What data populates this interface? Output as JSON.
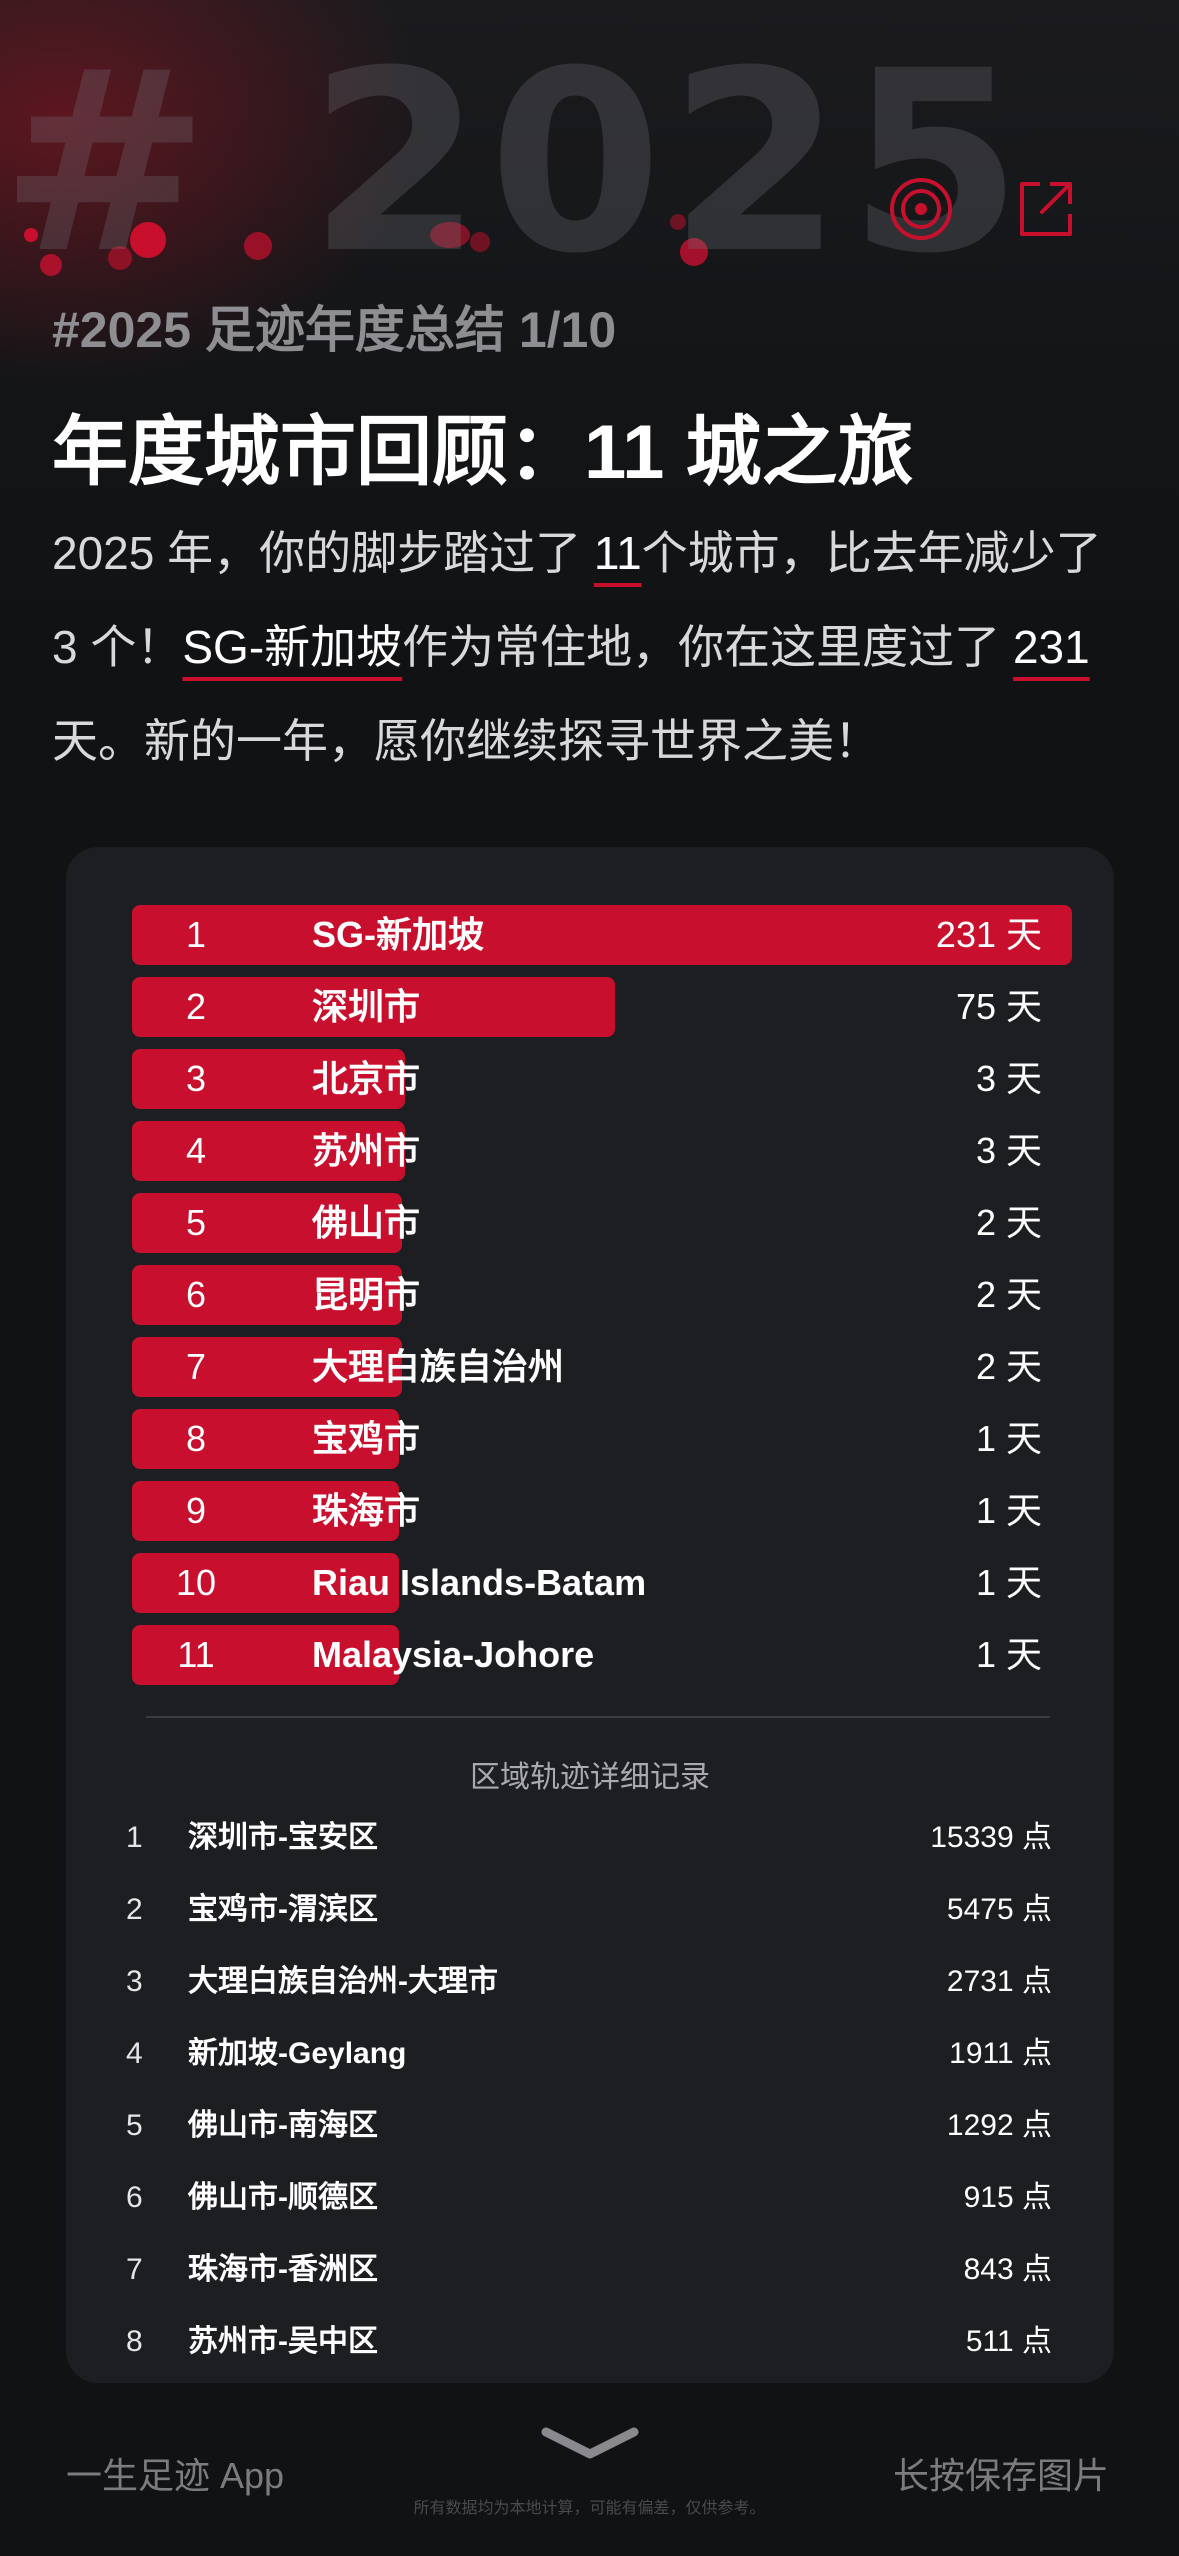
{
  "hero": {
    "year_text": "# 2025"
  },
  "header": {
    "subtitle": "#2025 足迹年度总结 1/10",
    "title": "年度城市回顾：11 城之旅"
  },
  "summary": {
    "p1": "2025 年，你的脚步踏过了 ",
    "city_count": "11",
    "p2": "个城市，比去年减少了 3 个！",
    "home_city": "SG-新加坡",
    "p3": "作为常住地，你在这里度过了 ",
    "home_days": "231",
    "p4": "天。新的一年，愿你继续探寻世界之美！"
  },
  "accent_color": "#c8102e",
  "cities": [
    {
      "rank": "1",
      "name": "SG-新加坡",
      "days": "231 天",
      "fill": 1.0
    },
    {
      "rank": "2",
      "name": "深圳市",
      "days": "75 天",
      "fill": 0.514
    },
    {
      "rank": "3",
      "name": "北京市",
      "days": "3 天",
      "fill": 0.29
    },
    {
      "rank": "4",
      "name": "苏州市",
      "days": "3 天",
      "fill": 0.29
    },
    {
      "rank": "5",
      "name": "佛山市",
      "days": "2 天",
      "fill": 0.287
    },
    {
      "rank": "6",
      "name": "昆明市",
      "days": "2 天",
      "fill": 0.287
    },
    {
      "rank": "7",
      "name": "大理白族自治州",
      "days": "2 天",
      "fill": 0.287
    },
    {
      "rank": "8",
      "name": "宝鸡市",
      "days": "1 天",
      "fill": 0.284
    },
    {
      "rank": "9",
      "name": "珠海市",
      "days": "1 天",
      "fill": 0.284
    },
    {
      "rank": "10",
      "name": "Riau Islands-Batam",
      "days": "1 天",
      "fill": 0.284
    },
    {
      "rank": "11",
      "name": "Malaysia-Johore",
      "days": "1 天",
      "fill": 0.284
    }
  ],
  "region_section_title": "区域轨迹详细记录",
  "regions": [
    {
      "idx": "1",
      "name": "深圳市-宝安区",
      "points": "15339 点"
    },
    {
      "idx": "2",
      "name": "宝鸡市-渭滨区",
      "points": "5475 点"
    },
    {
      "idx": "3",
      "name": "大理白族自治州-大理市",
      "points": "2731 点"
    },
    {
      "idx": "4",
      "name": "新加坡-Geylang",
      "points": "1911 点"
    },
    {
      "idx": "5",
      "name": "佛山市-南海区",
      "points": "1292 点"
    },
    {
      "idx": "6",
      "name": "佛山市-顺德区",
      "points": "915 点"
    },
    {
      "idx": "7",
      "name": "珠海市-香洲区",
      "points": "843 点"
    },
    {
      "idx": "8",
      "name": "苏州市-吴中区",
      "points": "511 点"
    }
  ],
  "footer": {
    "app_name": "一生足迹 App",
    "save_hint": "长按保存图片",
    "note": "所有数据均为本地计算，可能有偏差，仅供参考。"
  },
  "icons": {
    "record": "vinyl-record-icon",
    "share": "share-export-icon",
    "scroll": "chevron-down-icon"
  }
}
